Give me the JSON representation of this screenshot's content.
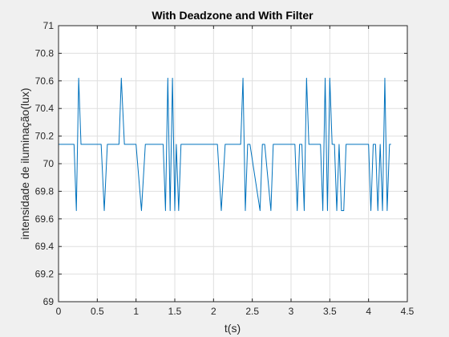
{
  "chart_data": {
    "type": "line",
    "title": "With Deadzone and With Filter",
    "xlabel": "t(s)",
    "ylabel": "intensidade de iluminação(lux)",
    "xlim": [
      0,
      4.5
    ],
    "ylim": [
      69,
      71
    ],
    "xticks": [
      "0",
      "0.5",
      "1",
      "1.5",
      "2",
      "2.5",
      "3",
      "3.5",
      "4",
      "4.5"
    ],
    "yticks": [
      "69",
      "69.2",
      "69.4",
      "69.6",
      "69.8",
      "70",
      "70.2",
      "70.4",
      "70.6",
      "70.8",
      "71"
    ],
    "grid": true,
    "series_color": "#0072bd",
    "series": [
      {
        "x": [
          0,
          0.2,
          0.23,
          0.26,
          0.29,
          0.55,
          0.59,
          0.63,
          0.78,
          0.81,
          0.85,
          1.0,
          1.07,
          1.12,
          1.35,
          1.38,
          1.41,
          1.44,
          1.47,
          1.5,
          1.52,
          1.55,
          1.58,
          1.61,
          2.05,
          2.1,
          2.15,
          2.35,
          2.38,
          2.41,
          2.44,
          2.47,
          2.6,
          2.63,
          2.66,
          2.74,
          2.77,
          2.8,
          3.05,
          3.08,
          3.11,
          3.14,
          3.17,
          3.2,
          3.23,
          3.38,
          3.41,
          3.44,
          3.47,
          3.5,
          3.53,
          3.56,
          3.59,
          3.62,
          3.65,
          3.68,
          3.71,
          3.74,
          3.77,
          4.0,
          4.03,
          4.06,
          4.09,
          4.12,
          4.15,
          4.18,
          4.21,
          4.24,
          4.27,
          4.29
        ],
        "y": [
          70.14,
          70.14,
          69.66,
          70.62,
          70.14,
          70.14,
          69.66,
          70.14,
          70.14,
          70.62,
          70.14,
          70.14,
          69.66,
          70.14,
          70.14,
          69.66,
          70.62,
          69.66,
          70.62,
          69.66,
          70.14,
          69.66,
          70.14,
          70.14,
          70.14,
          69.66,
          70.14,
          70.14,
          70.62,
          69.66,
          70.14,
          70.14,
          69.66,
          70.14,
          70.14,
          69.66,
          70.14,
          70.14,
          70.14,
          69.66,
          70.14,
          70.14,
          69.66,
          70.62,
          70.14,
          70.14,
          69.66,
          70.62,
          69.66,
          70.62,
          70.14,
          70.14,
          69.66,
          70.14,
          69.66,
          69.66,
          70.14,
          70.14,
          70.14,
          70.14,
          69.66,
          70.14,
          70.14,
          69.66,
          70.14,
          69.66,
          70.62,
          69.66,
          70.14,
          70.14
        ]
      }
    ]
  }
}
